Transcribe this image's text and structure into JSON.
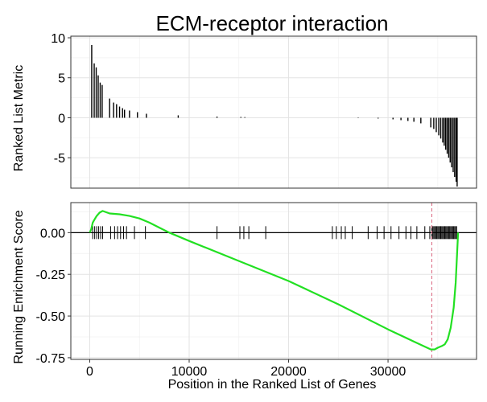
{
  "chart_data": {
    "title": "ECM-receptor interaction",
    "x_axis": {
      "label": "Position in the Ranked List of Genes",
      "ticks": [
        0,
        10000,
        20000,
        30000
      ],
      "tick_labels": [
        "0",
        "10000",
        "20000",
        "30000"
      ],
      "range": [
        -1900,
        38900
      ]
    },
    "panels": [
      {
        "id": "ranked_metric",
        "type": "bar",
        "ylabel": "Ranked List Metric",
        "ylim": [
          -8.8,
          10.2
        ],
        "yticks": [
          10,
          5,
          0,
          -5
        ],
        "ytick_labels": [
          "10",
          "5",
          "0",
          "-5"
        ],
        "grid": true,
        "bars": [
          {
            "x": 200,
            "y": 9.1
          },
          {
            "x": 450,
            "y": 6.8
          },
          {
            "x": 650,
            "y": 6.3
          },
          {
            "x": 850,
            "y": 5.3
          },
          {
            "x": 1050,
            "y": 4.4
          },
          {
            "x": 1250,
            "y": 4.1
          },
          {
            "x": 2000,
            "y": 2.4
          },
          {
            "x": 2400,
            "y": 1.9
          },
          {
            "x": 2700,
            "y": 1.7
          },
          {
            "x": 3000,
            "y": 1.4
          },
          {
            "x": 3300,
            "y": 1.2
          },
          {
            "x": 3500,
            "y": 1.0
          },
          {
            "x": 4000,
            "y": 0.9
          },
          {
            "x": 4800,
            "y": 0.7
          },
          {
            "x": 5700,
            "y": 0.5
          },
          {
            "x": 8900,
            "y": 0.3
          },
          {
            "x": 12800,
            "y": 0.15
          },
          {
            "x": 15200,
            "y": 0.1
          },
          {
            "x": 15600,
            "y": 0.08
          },
          {
            "x": 27000,
            "y": -0.05
          },
          {
            "x": 29000,
            "y": -0.1
          },
          {
            "x": 30500,
            "y": -0.2
          },
          {
            "x": 31300,
            "y": -0.3
          },
          {
            "x": 32000,
            "y": -0.4
          },
          {
            "x": 32600,
            "y": -0.5
          },
          {
            "x": 33300,
            "y": -0.7
          },
          {
            "x": 34300,
            "y": -1.2
          },
          {
            "x": 34600,
            "y": -1.4
          },
          {
            "x": 34850,
            "y": -1.8
          },
          {
            "x": 35100,
            "y": -2.2
          },
          {
            "x": 35300,
            "y": -2.6
          },
          {
            "x": 35500,
            "y": -3.1
          },
          {
            "x": 35650,
            "y": -3.5
          },
          {
            "x": 35800,
            "y": -4.0
          },
          {
            "x": 35950,
            "y": -4.5
          },
          {
            "x": 36100,
            "y": -5.0
          },
          {
            "x": 36250,
            "y": -5.6
          },
          {
            "x": 36400,
            "y": -6.2
          },
          {
            "x": 36550,
            "y": -6.8
          },
          {
            "x": 36700,
            "y": -7.4
          },
          {
            "x": 36850,
            "y": -8.0
          },
          {
            "x": 36950,
            "y": -8.6
          }
        ]
      },
      {
        "id": "running_es",
        "type": "line",
        "ylabel": "Running Enrichment Score",
        "ylim": [
          -0.76,
          0.18
        ],
        "yticks": [
          0.0,
          -0.25,
          -0.5,
          -0.75
        ],
        "ytick_labels": [
          "0.00",
          "-0.25",
          "-0.50",
          "-0.75"
        ],
        "grid": true,
        "line_color": "#22e022",
        "zero_line_color": "#000000",
        "max_deviation_marker": {
          "x": 34400,
          "color": "#d9607a",
          "style": "dashed"
        },
        "curve": [
          {
            "x": 0,
            "y": 0.0
          },
          {
            "x": 150,
            "y": 0.02
          },
          {
            "x": 300,
            "y": 0.06
          },
          {
            "x": 500,
            "y": 0.08
          },
          {
            "x": 700,
            "y": 0.1
          },
          {
            "x": 1000,
            "y": 0.12
          },
          {
            "x": 1300,
            "y": 0.13
          },
          {
            "x": 2000,
            "y": 0.115
          },
          {
            "x": 3000,
            "y": 0.11
          },
          {
            "x": 4000,
            "y": 0.1
          },
          {
            "x": 5000,
            "y": 0.085
          },
          {
            "x": 6000,
            "y": 0.06
          },
          {
            "x": 7000,
            "y": 0.03
          },
          {
            "x": 8000,
            "y": 0.0
          },
          {
            "x": 10000,
            "y": -0.05
          },
          {
            "x": 15000,
            "y": -0.17
          },
          {
            "x": 20000,
            "y": -0.29
          },
          {
            "x": 25000,
            "y": -0.43
          },
          {
            "x": 30000,
            "y": -0.58
          },
          {
            "x": 32500,
            "y": -0.65
          },
          {
            "x": 34300,
            "y": -0.7
          },
          {
            "x": 34700,
            "y": -0.7
          },
          {
            "x": 35000,
            "y": -0.69
          },
          {
            "x": 35400,
            "y": -0.68
          },
          {
            "x": 35700,
            "y": -0.67
          },
          {
            "x": 36000,
            "y": -0.64
          },
          {
            "x": 36300,
            "y": -0.57
          },
          {
            "x": 36600,
            "y": -0.45
          },
          {
            "x": 36800,
            "y": -0.3
          },
          {
            "x": 36950,
            "y": -0.12
          },
          {
            "x": 37050,
            "y": 0.0
          }
        ],
        "gene_hits": [
          300,
          500,
          700,
          900,
          1100,
          1300,
          2100,
          2500,
          2800,
          3100,
          3400,
          3700,
          4500,
          5600,
          12800,
          15100,
          15500,
          16000,
          17700,
          24400,
          24800,
          25300,
          25700,
          26400,
          28000,
          28900,
          29600,
          30300,
          31100,
          31800,
          32300,
          32900,
          33700,
          34200,
          34400,
          34500,
          34600,
          34700,
          34800,
          34900,
          35000,
          35100,
          35200,
          35300,
          35400,
          35500,
          35600,
          35700,
          35800,
          35900,
          36000,
          36100,
          36200,
          36300,
          36400,
          36500,
          36600,
          36700,
          36800,
          36900
        ]
      }
    ]
  }
}
